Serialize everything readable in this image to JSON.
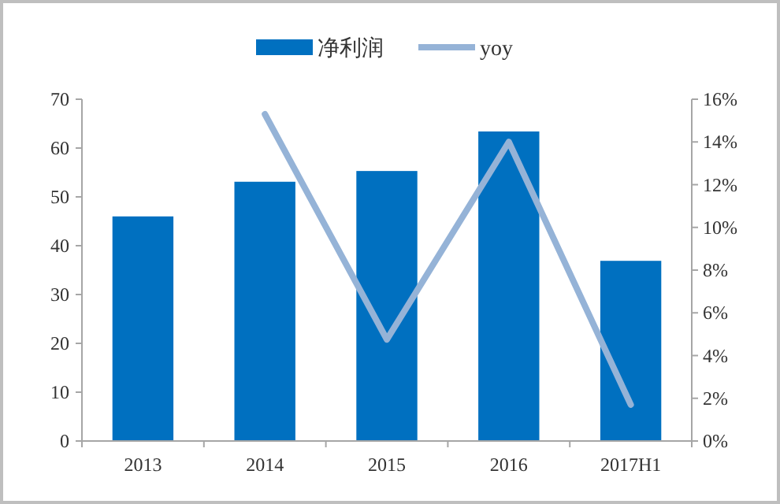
{
  "chart_data": {
    "type": "bar",
    "categories": [
      "2013",
      "2014",
      "2015",
      "2016",
      "2017H1"
    ],
    "series": [
      {
        "name": "净利润",
        "color": "#0070c0",
        "values": [
          46.0,
          53.1,
          55.3,
          63.4,
          36.9
        ]
      },
      {
        "name": "yoy",
        "type": "line",
        "axis": "y2",
        "color": "#95b3d7",
        "values": [
          null,
          15.3,
          4.75,
          14.0,
          1.7
        ]
      }
    ],
    "ylim": [
      0,
      70
    ],
    "yticks": [
      0,
      10,
      20,
      30,
      40,
      50,
      60,
      70
    ],
    "y2lim": [
      0,
      16
    ],
    "y2ticks": [
      {
        "value": 0,
        "label": "0%"
      },
      {
        "value": 2,
        "label": "2%"
      },
      {
        "value": 4,
        "label": "4%"
      },
      {
        "value": 6,
        "label": "6%"
      },
      {
        "value": 8,
        "label": "8%"
      },
      {
        "value": 10,
        "label": "10%"
      },
      {
        "value": 12,
        "label": "12%"
      },
      {
        "value": 14,
        "label": "14%"
      },
      {
        "value": 16,
        "label": "16%"
      }
    ],
    "legend": "top",
    "grid": false,
    "marker": "none",
    "line_style": "solid"
  }
}
